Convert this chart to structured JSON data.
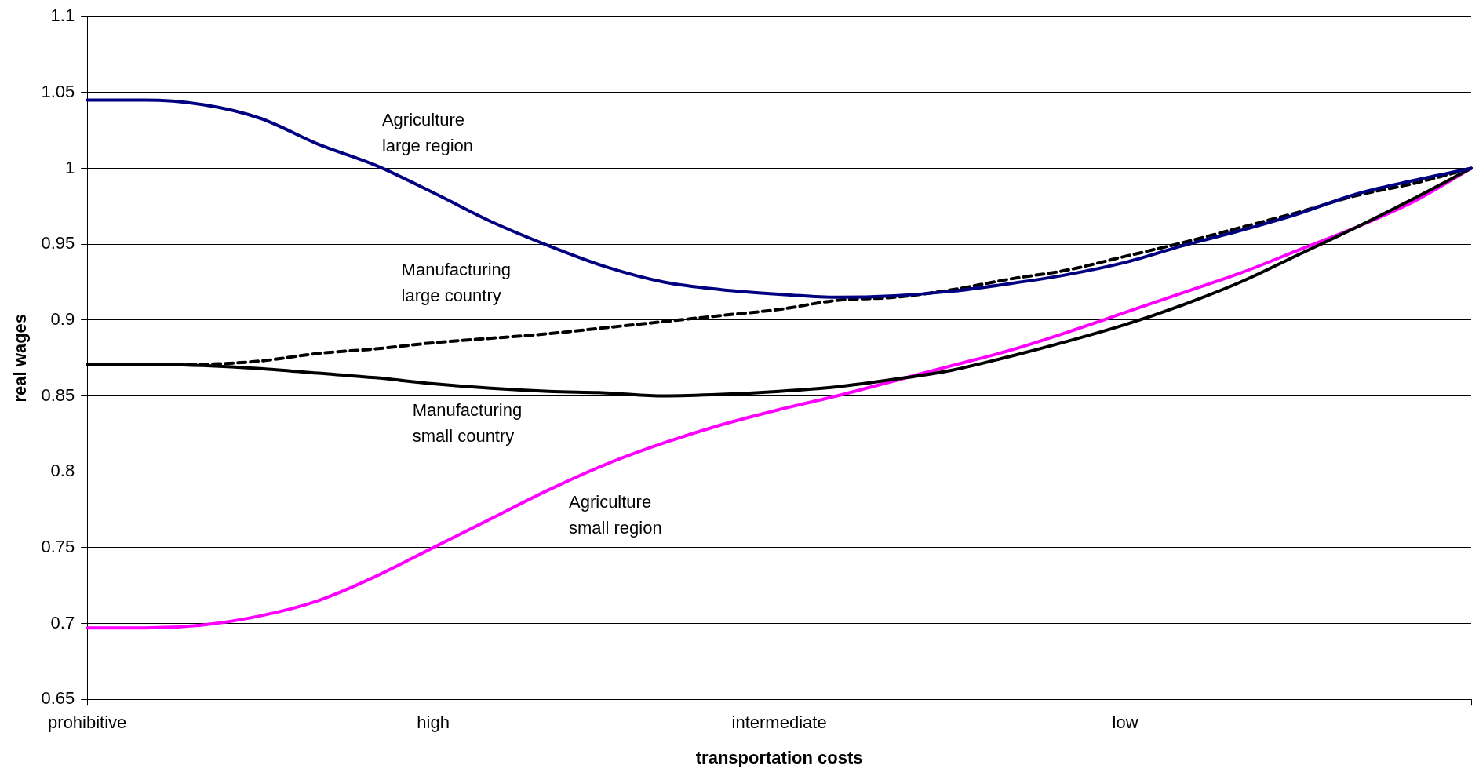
{
  "chart_data": {
    "type": "line",
    "xlabel": "transportation costs",
    "ylabel": "real wages",
    "categories": [
      "prohibitive",
      null,
      null,
      null,
      null,
      null,
      "high",
      null,
      null,
      null,
      null,
      null,
      "intermediate",
      null,
      null,
      null,
      null,
      null,
      "low",
      null,
      null,
      null,
      null,
      null,
      null
    ],
    "series": [
      {
        "color": "#000080",
        "values": [
          1.045,
          1.045,
          1.042,
          1.033,
          1.016,
          1.002,
          0.984,
          0.965,
          0.949,
          0.935,
          0.925,
          0.92,
          0.917,
          0.915,
          0.916,
          0.919,
          0.924,
          0.93,
          0.938,
          0.949,
          0.959,
          0.97,
          0.983,
          0.992,
          1.0
        ]
      },
      {
        "color": "#000000",
        "line_style": "dashed",
        "values": [
          0.871,
          0.871,
          0.871,
          0.873,
          0.878,
          0.881,
          0.885,
          0.888,
          0.891,
          0.895,
          0.899,
          0.903,
          0.907,
          0.913,
          0.915,
          0.92,
          0.927,
          0.933,
          0.942,
          0.951,
          0.961,
          0.971,
          0.982,
          0.99,
          1.0
        ]
      },
      {
        "color": "#000000",
        "values": [
          0.871,
          0.871,
          0.87,
          0.868,
          0.865,
          0.862,
          0.858,
          0.855,
          0.853,
          0.852,
          0.85,
          0.851,
          0.853,
          0.856,
          0.861,
          0.867,
          0.876,
          0.886,
          0.897,
          0.91,
          0.925,
          0.943,
          0.961,
          0.98,
          1.0
        ]
      },
      {
        "color": "#ff00ff",
        "values": [
          0.697,
          0.697,
          0.699,
          0.705,
          0.715,
          0.731,
          0.75,
          0.769,
          0.788,
          0.805,
          0.819,
          0.831,
          0.841,
          0.85,
          0.86,
          0.87,
          0.88,
          0.892,
          0.905,
          0.918,
          0.931,
          0.946,
          0.961,
          0.978,
          1.0
        ]
      }
    ],
    "ylim": [
      0.65,
      1.1
    ],
    "yticks": [
      0.65,
      0.7,
      0.75,
      0.8,
      0.85,
      0.9,
      0.95,
      1,
      1.05,
      1.1
    ],
    "grid": "y",
    "legend": false,
    "marker": "none",
    "line_style": "solid",
    "annotations": [
      "Agriculture\nlarge region",
      "Manufacturing\nlarge country",
      "Manufacturing\nsmall country",
      "Agriculture\nsmall region"
    ]
  }
}
